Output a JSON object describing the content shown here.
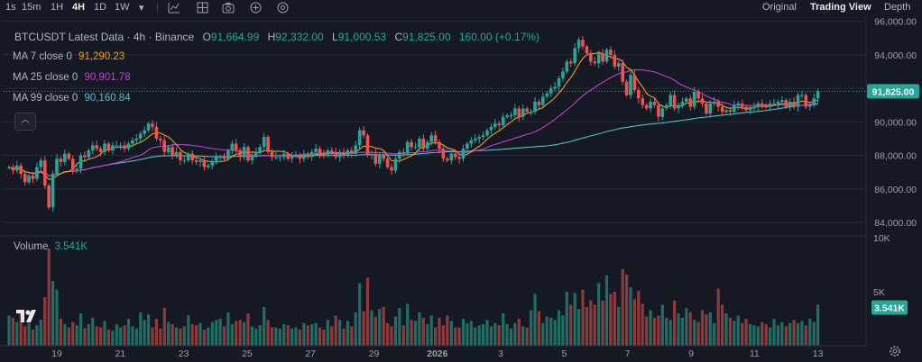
{
  "toolbar": {
    "timeframes": [
      {
        "label": "1s",
        "active": false
      },
      {
        "label": "15m",
        "active": false
      },
      {
        "label": "1H",
        "active": false
      },
      {
        "label": "4H",
        "active": true
      },
      {
        "label": "1D",
        "active": false
      },
      {
        "label": "1W",
        "active": false
      }
    ],
    "views": [
      {
        "label": "Original",
        "active": false
      },
      {
        "label": "Trading View",
        "active": true
      },
      {
        "label": "Depth",
        "active": false
      }
    ]
  },
  "legend": {
    "title": "BTCUSDT Latest Data · 4h · Binance",
    "o_label": "O",
    "o_value": "91,664.99",
    "h_label": "H",
    "h_value": "92,332.00",
    "l_label": "L",
    "l_value": "91,000.53",
    "c_label": "C",
    "c_value": "91,825.00",
    "change": "160.00 (+0.17%)",
    "ma7_label": "MA 7 close 0",
    "ma7_value": "91,290.23",
    "ma25_label": "MA 25 close 0",
    "ma25_value": "90,901.78",
    "ma99_label": "MA 99 close 0",
    "ma99_value": "90,160.84",
    "volume_label": "Volume",
    "volume_value": "3.541K"
  },
  "colors": {
    "background": "#151924",
    "up": "#26a69a",
    "down": "#ef5350",
    "ma7": "#f0a020",
    "ma25": "#c040d0",
    "ma99": "#4fc0c8",
    "grid": "#262b36"
  },
  "chart_data": {
    "type": "candlestick",
    "symbol": "BTCUSDT",
    "interval": "4h",
    "exchange": "Binance",
    "price_ticks": [
      96000,
      94000,
      92000,
      90000,
      88000,
      86000,
      84000
    ],
    "volume_ticks": [
      10000,
      5000
    ],
    "volume_tick_labels": [
      "10K",
      "5K"
    ],
    "x_tick_labels": [
      "19",
      "21",
      "23",
      "25",
      "27",
      "29",
      "2026",
      "3",
      "5",
      "7",
      "9",
      "11",
      "13"
    ],
    "current_price_label": "91,825.00",
    "current_volume_label": "3.541K",
    "ylim": [
      83300,
      96200
    ],
    "volume_ylim": [
      0,
      10000
    ],
    "series": [
      {
        "name": "Price",
        "closes": [
          87300,
          87100,
          87400,
          86900,
          86400,
          86800,
          86600,
          87300,
          87700,
          86200,
          84900,
          86900,
          87800,
          87600,
          88100,
          87800,
          87100,
          87200,
          88000,
          87900,
          88300,
          88600,
          88400,
          88200,
          88700,
          88300,
          88600,
          88600,
          88600,
          88400,
          88700,
          88900,
          89000,
          89300,
          89500,
          89900,
          89700,
          89000,
          88900,
          88200,
          88500,
          88000,
          88200,
          87700,
          87700,
          88100,
          87700,
          87600,
          87700,
          87300,
          87400,
          87600,
          87900,
          87900,
          87800,
          88300,
          88700,
          88300,
          87900,
          88500,
          87700,
          88000,
          88200,
          88500,
          89100,
          88200,
          87900,
          87900,
          87900,
          88100,
          87800,
          88000,
          88000,
          87800,
          88100,
          87900,
          88200,
          88400,
          88100,
          88000,
          88300,
          88200,
          87900,
          88200,
          88000,
          88300,
          88100,
          88600,
          89500,
          89200,
          88000,
          88100,
          87500,
          88000,
          87800,
          87300,
          87100,
          87800,
          88200,
          88100,
          88800,
          88500,
          88500,
          89000,
          88400,
          88800,
          89200,
          88800,
          88400,
          87800,
          87700,
          88100,
          87900,
          87800,
          88400,
          88700,
          88900,
          89000,
          89100,
          89200,
          89500,
          89700,
          89900,
          89800,
          90300,
          90400,
          90400,
          90800,
          90300,
          90800,
          90600,
          90600,
          91200,
          91000,
          91500,
          91700,
          92000,
          92100,
          92600,
          93000,
          93600,
          93500,
          94400,
          94900,
          94500,
          94100,
          93600,
          93500,
          94100,
          93600,
          94300,
          94000,
          93300,
          93500,
          92400,
          91600,
          92800,
          91900,
          91400,
          91000,
          90800,
          91200,
          91000,
          90300,
          90800,
          91000,
          91600,
          90800,
          91000,
          91200,
          91400,
          90900,
          91800,
          91400,
          91100,
          90500,
          91100,
          91200,
          90900,
          90600,
          90700,
          90600,
          91000,
          91100,
          90900,
          90700,
          90800,
          90900,
          91100,
          91000,
          90900,
          91100,
          91100,
          91200,
          91300,
          90900,
          91200,
          90900,
          91600,
          91600,
          90900,
          91000,
          91400,
          91825
        ]
      },
      {
        "name": "MA 7",
        "last": 91290.23
      },
      {
        "name": "MA 25",
        "last": 90901.78
      },
      {
        "name": "MA 99",
        "last": 90160.84
      },
      {
        "name": "Volume",
        "last": 3541,
        "values": [
          2800,
          2600,
          2200,
          3200,
          1800,
          2100,
          1500,
          1900,
          2400,
          4500,
          9000,
          6000,
          5200,
          2500,
          2000,
          1700,
          2200,
          1900,
          3000,
          1600,
          2000,
          2600,
          1800,
          1700,
          2300,
          1500,
          1400,
          2000,
          1700,
          1900,
          2500,
          1800,
          1600,
          3100,
          2400,
          2900,
          1700,
          2500,
          1600,
          3500,
          2200,
          2000,
          1700,
          1600,
          1800,
          2800,
          2000,
          1900,
          2100,
          1500,
          1700,
          2200,
          2400,
          2500,
          1800,
          3100,
          2000,
          2300,
          2400,
          2200,
          3000,
          1800,
          1600,
          1900,
          3600,
          2400,
          1700,
          1700,
          1600,
          2000,
          1900,
          1600,
          1700,
          1500,
          2100,
          1900,
          2000,
          2100,
          1700,
          1500,
          2400,
          1800,
          2800,
          2400,
          1600,
          2300,
          1800,
          3100,
          5800,
          3200,
          6300,
          3300,
          2700,
          3400,
          3600,
          2100,
          1800,
          2700,
          3500,
          1900,
          3900,
          2400,
          2300,
          3100,
          2600,
          2000,
          2800,
          1700,
          2600,
          1900,
          2800,
          2300,
          1700,
          1700,
          2500,
          2100,
          2300,
          1700,
          1900,
          2000,
          2400,
          1800,
          2100,
          1900,
          3000,
          2000,
          1600,
          2100,
          2500,
          1800,
          1700,
          3300,
          4800,
          3200,
          2100,
          2700,
          2600,
          2400,
          3300,
          2800,
          5000,
          3800,
          4900,
          3400,
          5200,
          3600,
          4200,
          3800,
          5800,
          4200,
          6500,
          4800,
          5000,
          3600,
          7100,
          6600,
          5400,
          4300,
          5100,
          3900,
          2700,
          3300,
          2600,
          2800,
          3800,
          2600,
          2400,
          4200,
          3000,
          2600,
          3500,
          3100,
          2400,
          2200,
          3300,
          2900,
          3100,
          2100,
          5300,
          3800,
          3000,
          2600,
          2300,
          2800,
          2100,
          2500,
          2000,
          1900,
          1800,
          2200,
          2000,
          1700,
          2500,
          1900,
          2200,
          1800,
          2100,
          2400,
          2100,
          2300,
          1900,
          2500,
          2200,
          3800,
          3300,
          2800,
          3200,
          2900,
          3541
        ]
      }
    ]
  }
}
